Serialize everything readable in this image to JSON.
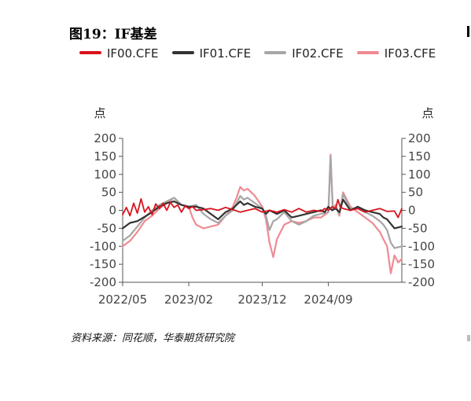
{
  "figure": {
    "title": "图19：IF基差",
    "source": "资料来源：同花顺，华泰期货研究院"
  },
  "chart_data": {
    "type": "line",
    "title": "图19：IF基差",
    "ylabel_left": "点",
    "ylabel_right": "点",
    "ylim": [
      -200,
      200
    ],
    "yticks": [
      200,
      150,
      100,
      50,
      0,
      -50,
      -100,
      -150,
      -200
    ],
    "x_tick_labels": [
      "2022/05",
      "2023/02",
      "2023/12",
      "2024/09"
    ],
    "xlim_months": [
      0,
      38
    ],
    "x_ticks_at_months": [
      0,
      9,
      19,
      28
    ],
    "legend_position": "top",
    "grid": false,
    "series": [
      {
        "name": "IF00.CFE",
        "color": "#d9121c",
        "x": [
          0,
          0.5,
          1,
          1.5,
          2,
          2.5,
          3,
          3.5,
          4,
          4.5,
          5,
          5.5,
          6,
          6.5,
          7,
          7.5,
          8,
          8.5,
          9,
          9.5,
          10,
          11,
          12,
          13,
          14,
          15,
          16,
          17,
          18,
          19,
          20,
          21,
          22,
          23,
          24,
          25,
          26,
          27,
          27.5,
          28,
          28.5,
          29,
          29.3,
          29.6,
          30,
          31,
          32,
          33,
          34,
          35,
          36,
          37,
          37.5,
          38
        ],
        "y": [
          -12,
          8,
          -15,
          20,
          -8,
          32,
          -5,
          10,
          -12,
          18,
          5,
          20,
          0,
          22,
          8,
          15,
          -5,
          12,
          5,
          10,
          0,
          2,
          5,
          0,
          8,
          2,
          -5,
          0,
          5,
          -5,
          0,
          -5,
          2,
          -5,
          5,
          -5,
          0,
          -3,
          5,
          0,
          10,
          5,
          30,
          10,
          5,
          0,
          5,
          -5,
          0,
          5,
          -3,
          -2,
          -20,
          5
        ]
      },
      {
        "name": "IF01.CFE",
        "color": "#333333",
        "x": [
          0,
          1,
          2,
          3,
          4,
          5,
          6,
          7,
          8,
          9,
          10,
          11,
          12,
          13,
          14,
          15,
          15.5,
          16,
          16.5,
          17,
          18,
          19,
          19.5,
          20,
          21,
          22,
          23,
          24,
          25,
          26,
          27,
          27.5,
          28,
          28.5,
          29,
          29.5,
          30,
          31,
          32,
          33,
          34,
          35,
          35.5,
          36,
          37,
          38
        ],
        "y": [
          -50,
          -35,
          -30,
          -18,
          -5,
          10,
          20,
          25,
          15,
          10,
          10,
          5,
          -10,
          -25,
          -5,
          5,
          15,
          25,
          15,
          20,
          10,
          5,
          -10,
          0,
          -10,
          0,
          -20,
          -15,
          -10,
          -5,
          0,
          -5,
          10,
          0,
          5,
          -5,
          30,
          0,
          10,
          0,
          -5,
          -10,
          -20,
          -25,
          -50,
          -45
        ]
      },
      {
        "name": "IF02.CFE",
        "color": "#a6a6a6",
        "x": [
          0,
          1,
          2,
          3,
          4,
          5,
          6,
          7,
          8,
          9,
          10,
          11,
          12,
          13,
          14,
          15,
          15.5,
          16,
          16.5,
          17,
          18,
          19,
          19.5,
          20,
          20.5,
          21,
          22,
          23,
          24,
          25,
          26,
          27,
          28,
          28.3,
          28.6,
          29,
          29.5,
          30,
          31,
          32,
          33,
          34,
          35,
          35.5,
          36,
          36.5,
          37,
          38
        ],
        "y": [
          -85,
          -70,
          -45,
          -20,
          0,
          15,
          25,
          35,
          15,
          10,
          15,
          -10,
          -25,
          -35,
          -15,
          0,
          20,
          40,
          30,
          35,
          20,
          5,
          -15,
          -55,
          -30,
          -25,
          -5,
          -30,
          -40,
          -30,
          -15,
          -10,
          -5,
          150,
          5,
          10,
          -10,
          45,
          5,
          5,
          -5,
          -15,
          -30,
          -40,
          -55,
          -90,
          -105,
          -100
        ]
      },
      {
        "name": "IF03.CFE",
        "color": "#f08a93",
        "x": [
          0,
          1,
          2,
          3,
          4,
          5,
          6,
          7,
          8,
          9,
          9.5,
          10,
          11,
          12,
          13,
          14,
          15,
          15.5,
          16,
          16.5,
          17,
          18,
          19,
          19.5,
          20,
          20.5,
          21,
          22,
          23,
          24,
          25,
          26,
          27,
          28,
          28.3,
          28.6,
          29,
          29.5,
          30,
          31,
          32,
          33,
          34,
          35,
          35.5,
          36,
          36.5,
          37,
          37.5,
          38
        ],
        "y": [
          -100,
          -85,
          -60,
          -30,
          -15,
          5,
          20,
          35,
          15,
          10,
          -20,
          -40,
          -50,
          -45,
          -40,
          -15,
          10,
          35,
          65,
          55,
          60,
          40,
          10,
          -25,
          -90,
          -130,
          -80,
          -40,
          -30,
          -35,
          -30,
          -20,
          -20,
          -5,
          155,
          5,
          15,
          -15,
          50,
          10,
          -5,
          -20,
          -35,
          -60,
          -80,
          -100,
          -175,
          -125,
          -145,
          -135
        ]
      }
    ]
  }
}
